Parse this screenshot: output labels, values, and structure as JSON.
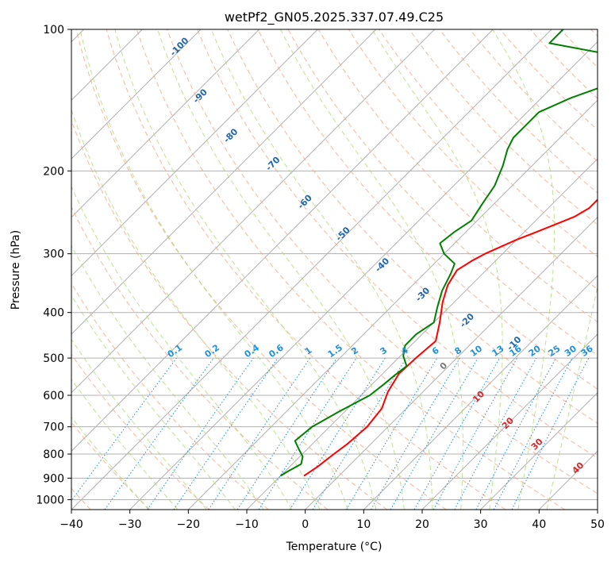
{
  "chart_data": {
    "type": "line",
    "title": "wetPf2_GN05.2025.337.07.49.C25",
    "xlabel": "Temperature (°C)",
    "ylabel": "Pressure (hPa)",
    "xlim": [
      -40,
      50
    ],
    "ylim": [
      1050,
      100
    ],
    "yscale": "log",
    "x_ticks": [
      -40,
      -30,
      -20,
      -10,
      0,
      10,
      20,
      30,
      40,
      50
    ],
    "y_ticks": [
      1000,
      900,
      800,
      700,
      600,
      500,
      400,
      300,
      200,
      100
    ],
    "grid": true,
    "skew_note": "skew-T log-p diagram",
    "series": [
      {
        "name": "Temperature",
        "color": "#ff0000",
        "points": [
          [
            -6,
            890
          ],
          [
            -5.8,
            880
          ],
          [
            -5.2,
            850
          ],
          [
            -4.6,
            800
          ],
          [
            -4.0,
            760
          ],
          [
            -3.6,
            700
          ],
          [
            -4.2,
            640
          ],
          [
            -6,
            590
          ],
          [
            -7.2,
            540
          ],
          [
            -7.0,
            500
          ],
          [
            -6.5,
            460
          ],
          [
            -9,
            420
          ],
          [
            -12,
            380
          ],
          [
            -14,
            350
          ],
          [
            -15,
            325
          ],
          [
            -14,
            310
          ],
          [
            -13,
            300
          ],
          [
            -10,
            280
          ],
          [
            -8,
            270
          ],
          [
            -6,
            260
          ],
          [
            -4,
            250
          ],
          [
            -3,
            240
          ],
          [
            -3,
            220
          ],
          [
            -2.5,
            200
          ],
          [
            -2.5,
            180
          ],
          [
            -2,
            160
          ],
          [
            -2,
            140
          ],
          [
            0,
            120
          ],
          [
            2,
            110
          ],
          [
            1.8,
            100
          ]
        ]
      },
      {
        "name": "Dewpoint",
        "color": "#008000",
        "points": [
          [
            -10,
            890
          ],
          [
            -9.5,
            870
          ],
          [
            -8.5,
            840
          ],
          [
            -9.5,
            810
          ],
          [
            -11.5,
            780
          ],
          [
            -13.5,
            750
          ],
          [
            -13,
            700
          ],
          [
            -11,
            650
          ],
          [
            -8.5,
            600
          ],
          [
            -8,
            570
          ],
          [
            -7.7,
            545
          ],
          [
            -7.2,
            520
          ],
          [
            -9.5,
            495
          ],
          [
            -11,
            470
          ],
          [
            -11,
            445
          ],
          [
            -10,
            420
          ],
          [
            -12,
            390
          ],
          [
            -14,
            360
          ],
          [
            -15.5,
            330
          ],
          [
            -16.5,
            315
          ],
          [
            -20,
            300
          ],
          [
            -22.5,
            285
          ],
          [
            -22,
            270
          ],
          [
            -21,
            255
          ],
          [
            -22,
            235
          ],
          [
            -23,
            215
          ],
          [
            -25,
            195
          ],
          [
            -27,
            180
          ],
          [
            -28,
            170
          ],
          [
            -28,
            160
          ],
          [
            -28,
            150
          ],
          [
            -25,
            140
          ],
          [
            -18,
            125
          ],
          [
            -22,
            115
          ],
          [
            -38,
            107
          ],
          [
            -38,
            103
          ],
          [
            -38,
            100
          ]
        ]
      }
    ],
    "mixing_ratio_labels": [
      "0.1",
      "0.2",
      "0.4",
      "0.6",
      "1",
      "1.5",
      "2",
      "3",
      "4",
      "6",
      "8",
      "10",
      "13",
      "16",
      "20",
      "25",
      "30",
      "36"
    ],
    "mixing_ratio_values": [
      0.1,
      0.2,
      0.4,
      0.6,
      1,
      1.5,
      2,
      3,
      4,
      6,
      8,
      10,
      13,
      16,
      20,
      25,
      30,
      36
    ],
    "dry_adiabat_labels": [
      "-100",
      "-90",
      "-80",
      "-70",
      "-60",
      "-50",
      "-40",
      "-30",
      "-20",
      "-10"
    ],
    "dry_adiabat_values": [
      -100,
      -90,
      -80,
      -70,
      -60,
      -50,
      -40,
      -30,
      -20,
      -10
    ],
    "moist_adiabat_labels": [
      "0",
      "10",
      "20",
      "30",
      "40"
    ],
    "moist_adiabat_values": [
      0,
      10,
      20,
      30,
      40
    ],
    "colors": {
      "temperature": "#ff0000",
      "dewpoint": "#008000",
      "dry_adiabat": "#f4a582",
      "moist_adiabat": "#a6d96a",
      "mixing_ratio": "#1f8fe0",
      "dry_label": "#2166ac",
      "moist_label": "#d62728",
      "zero_label": "#777777",
      "grid": "#b0b0b0"
    }
  }
}
